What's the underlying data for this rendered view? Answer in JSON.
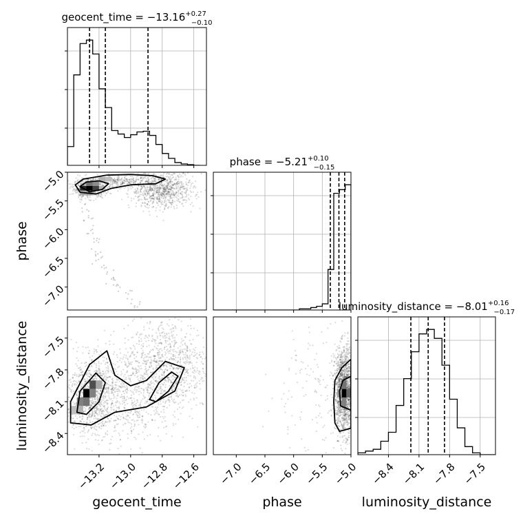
{
  "chart_data": {
    "type": "corner",
    "parameters": [
      "geocent_time",
      "phase",
      "luminosity_distance"
    ],
    "grid": true,
    "panels": [
      {
        "type": "histogram",
        "parameter": "geocent_time",
        "title": {
          "name": "geocent_time",
          "median": "−13.16",
          "plus": "+0.27",
          "minus": "−0.10"
        },
        "xlim": [
          -13.4,
          -12.52
        ],
        "bin_edges": [
          -13.4,
          -13.36,
          -13.32,
          -13.28,
          -13.24,
          -13.2,
          -13.16,
          -13.12,
          -13.08,
          -13.04,
          -13.0,
          -12.96,
          -12.92,
          -12.88,
          -12.84,
          -12.8,
          -12.76,
          -12.72,
          -12.68,
          -12.64,
          -12.6,
          -12.56
        ],
        "counts": [
          27,
          130,
          175,
          180,
          160,
          110,
          83,
          50,
          45,
          40,
          44,
          48,
          49,
          43,
          30,
          17,
          10,
          4,
          2,
          1,
          0
        ],
        "quantiles": [
          -13.26,
          -13.16,
          -12.89
        ]
      },
      {
        "type": "histogram",
        "parameter": "phase",
        "title": {
          "name": "phase",
          "median": "−5.21",
          "plus": "+0.10",
          "minus": "−0.15"
        },
        "xlim": [
          -7.4,
          -5.0
        ],
        "bin_edges": [
          -7.4,
          -7.3,
          -7.2,
          -7.1,
          -7.0,
          -6.9,
          -6.8,
          -6.7,
          -6.6,
          -6.5,
          -6.4,
          -6.3,
          -6.2,
          -6.1,
          -6.0,
          -5.9,
          -5.8,
          -5.7,
          -5.6,
          -5.5,
          -5.4,
          -5.3,
          -5.2,
          -5.1,
          -5.0
        ],
        "counts": [
          0,
          0,
          0,
          0,
          0,
          0,
          0,
          0,
          0,
          0,
          0,
          0,
          0,
          0,
          0,
          1,
          1,
          2,
          3,
          5,
          33,
          95,
          98,
          102
        ],
        "quantiles": [
          -5.36,
          -5.21,
          -5.11
        ]
      },
      {
        "type": "histogram",
        "parameter": "luminosity_distance",
        "title": {
          "name": "luminosity_distance",
          "median": "−8.01",
          "plus": "+0.16",
          "minus": "−0.17"
        },
        "xlim": [
          -8.7,
          -7.35
        ],
        "bin_edges": [
          -8.7,
          -8.625,
          -8.55,
          -8.475,
          -8.4,
          -8.325,
          -8.25,
          -8.175,
          -8.1,
          -8.025,
          -7.95,
          -7.875,
          -7.8,
          -7.725,
          -7.65,
          -7.575,
          -7.5,
          -7.425,
          -7.35
        ],
        "counts": [
          2,
          4,
          6,
          15,
          25,
          55,
          85,
          115,
          135,
          140,
          130,
          100,
          62,
          30,
          9,
          2,
          0,
          0
        ],
        "quantiles": [
          -8.18,
          -8.01,
          -7.85
        ]
      },
      {
        "type": "2d",
        "x": "geocent_time",
        "y": "phase",
        "xlim": [
          -13.4,
          -12.52
        ],
        "ylim": [
          -7.4,
          -5.0
        ],
        "density_clusters": [
          {
            "x": -13.26,
            "y": -5.28,
            "sx": 0.05,
            "sy": 0.08,
            "n": 650
          },
          {
            "x": -13.05,
            "y": -5.16,
            "sx": 0.09,
            "sy": 0.05,
            "n": 220
          },
          {
            "x": -12.8,
            "y": -5.3,
            "sx": 0.1,
            "sy": 0.16,
            "n": 900
          }
        ],
        "arc_points": [
          [
            -13.3,
            -5.6
          ],
          [
            -13.28,
            -5.8
          ],
          [
            -13.25,
            -6.0
          ],
          [
            -13.22,
            -6.2
          ],
          [
            -13.2,
            -6.4
          ],
          [
            -13.18,
            -6.55
          ],
          [
            -13.15,
            -6.7
          ],
          [
            -13.12,
            -6.85
          ],
          [
            -13.08,
            -7.0
          ],
          [
            -13.03,
            -7.15
          ],
          [
            -12.97,
            -7.3
          ]
        ],
        "histogram_cells": [
          {
            "x": -13.3,
            "y": -5.28,
            "v": 0.85
          },
          {
            "x": -13.26,
            "y": -5.28,
            "v": 1.0
          },
          {
            "x": -13.22,
            "y": -5.28,
            "v": 0.75
          },
          {
            "x": -13.26,
            "y": -5.2,
            "v": 0.55
          },
          {
            "x": -13.22,
            "y": -5.2,
            "v": 0.45
          },
          {
            "x": -13.18,
            "y": -5.12,
            "v": 0.3
          },
          {
            "x": -13.14,
            "y": -5.12,
            "v": 0.25
          },
          {
            "x": -13.3,
            "y": -5.36,
            "v": 0.35
          },
          {
            "x": -13.18,
            "y": -5.28,
            "v": 0.3
          }
        ],
        "contours": [
          [
            [
              -13.35,
              -5.22
            ],
            [
              -13.3,
              -5.12
            ],
            [
              -13.15,
              -5.05
            ],
            [
              -13.0,
              -5.04
            ],
            [
              -12.86,
              -5.06
            ],
            [
              -12.78,
              -5.12
            ],
            [
              -12.84,
              -5.2
            ],
            [
              -13.0,
              -5.22
            ],
            [
              -13.12,
              -5.28
            ],
            [
              -13.22,
              -5.38
            ],
            [
              -13.32,
              -5.35
            ]
          ],
          [
            [
              -13.32,
              -5.25
            ],
            [
              -13.28,
              -5.17
            ],
            [
              -13.2,
              -5.15
            ],
            [
              -13.14,
              -5.2
            ],
            [
              -13.18,
              -5.3
            ],
            [
              -13.26,
              -5.34
            ]
          ]
        ]
      },
      {
        "type": "2d",
        "x": "geocent_time",
        "y": "luminosity_distance",
        "xlim": [
          -13.4,
          -12.52
        ],
        "ylim": [
          -8.6,
          -7.3
        ],
        "density_clusters": [
          {
            "x": -13.25,
            "y": -8.05,
            "sx": 0.08,
            "sy": 0.18,
            "n": 900
          },
          {
            "x": -13.0,
            "y": -8.0,
            "sx": 0.14,
            "sy": 0.25,
            "n": 700
          },
          {
            "x": -12.75,
            "y": -7.75,
            "sx": 0.12,
            "sy": 0.22,
            "n": 800
          }
        ],
        "arc_points": [],
        "histogram_cells": [
          {
            "x": -13.28,
            "y": -8.02,
            "v": 1.0
          },
          {
            "x": -13.24,
            "y": -7.94,
            "v": 0.7
          },
          {
            "x": -13.32,
            "y": -8.1,
            "v": 0.5
          },
          {
            "x": -13.28,
            "y": -8.1,
            "v": 0.55
          },
          {
            "x": -13.24,
            "y": -8.02,
            "v": 0.5
          },
          {
            "x": -13.2,
            "y": -7.94,
            "v": 0.35
          },
          {
            "x": -13.32,
            "y": -8.18,
            "v": 0.3
          },
          {
            "x": -13.36,
            "y": -8.18,
            "v": 0.25
          }
        ],
        "contours": [
          [
            [
              -13.38,
              -8.3
            ],
            [
              -13.38,
              -8.1
            ],
            [
              -13.26,
              -7.75
            ],
            [
              -13.15,
              -7.62
            ],
            [
              -13.1,
              -7.85
            ],
            [
              -13.0,
              -7.95
            ],
            [
              -12.9,
              -7.9
            ],
            [
              -12.78,
              -7.72
            ],
            [
              -12.66,
              -7.78
            ],
            [
              -12.72,
              -8.0
            ],
            [
              -12.9,
              -8.15
            ],
            [
              -13.1,
              -8.2
            ],
            [
              -13.25,
              -8.32
            ]
          ],
          [
            [
              -13.34,
              -8.2
            ],
            [
              -13.32,
              -8.0
            ],
            [
              -13.22,
              -7.83
            ],
            [
              -13.16,
              -7.92
            ],
            [
              -13.2,
              -8.1
            ],
            [
              -13.28,
              -8.22
            ]
          ],
          [
            [
              -12.88,
              -8.08
            ],
            [
              -12.82,
              -7.92
            ],
            [
              -12.74,
              -7.82
            ],
            [
              -12.7,
              -7.86
            ],
            [
              -12.76,
              -8.0
            ],
            [
              -12.84,
              -8.1
            ]
          ]
        ]
      },
      {
        "type": "2d",
        "x": "phase",
        "y": "luminosity_distance",
        "xlim": [
          -7.4,
          -5.0
        ],
        "ylim": [
          -8.6,
          -7.3
        ],
        "density_clusters": [
          {
            "x": -5.12,
            "y": -8.0,
            "sx": 0.08,
            "sy": 0.2,
            "n": 1500
          },
          {
            "x": -5.6,
            "y": -8.0,
            "sx": 0.45,
            "sy": 0.3,
            "n": 180
          }
        ],
        "arc_points": [],
        "histogram_cells": [
          {
            "x": -5.12,
            "y": -8.02,
            "v": 1.0
          },
          {
            "x": -5.04,
            "y": -8.02,
            "v": 0.6
          },
          {
            "x": -5.12,
            "y": -7.94,
            "v": 0.55
          },
          {
            "x": -5.12,
            "y": -8.1,
            "v": 0.5
          },
          {
            "x": -5.2,
            "y": -8.02,
            "v": 0.4
          }
        ],
        "contours": [
          [
            [
              -5.0,
              -7.7
            ],
            [
              -5.16,
              -7.78
            ],
            [
              -5.28,
              -7.9
            ],
            [
              -5.3,
              -8.1
            ],
            [
              -5.28,
              -8.3
            ],
            [
              -5.2,
              -8.38
            ],
            [
              -5.0,
              -8.35
            ]
          ],
          [
            [
              -5.0,
              -7.86
            ],
            [
              -5.14,
              -7.9
            ],
            [
              -5.2,
              -8.0
            ],
            [
              -5.18,
              -8.14
            ],
            [
              -5.0,
              -8.18
            ]
          ]
        ]
      }
    ],
    "axes": {
      "geocent_time": {
        "label": "geocent_time",
        "ticks": [
          -13.2,
          -13.0,
          -12.8,
          -12.6
        ],
        "tick_labels": [
          "−13.2",
          "−13.0",
          "−12.8",
          "−12.6"
        ]
      },
      "phase": {
        "label": "phase",
        "ticks": [
          -7.0,
          -6.5,
          -6.0,
          -5.5,
          -5.0
        ],
        "tick_labels": [
          "−7.0",
          "−6.5",
          "−6.0",
          "−5.5",
          "−5.0"
        ]
      },
      "luminosity_distance": {
        "label": "luminosity_distance",
        "ticks": [
          -8.4,
          -8.1,
          -7.8,
          -7.5
        ],
        "tick_labels": [
          "−8.4",
          "−8.1",
          "−7.8",
          "−7.5"
        ]
      }
    }
  }
}
